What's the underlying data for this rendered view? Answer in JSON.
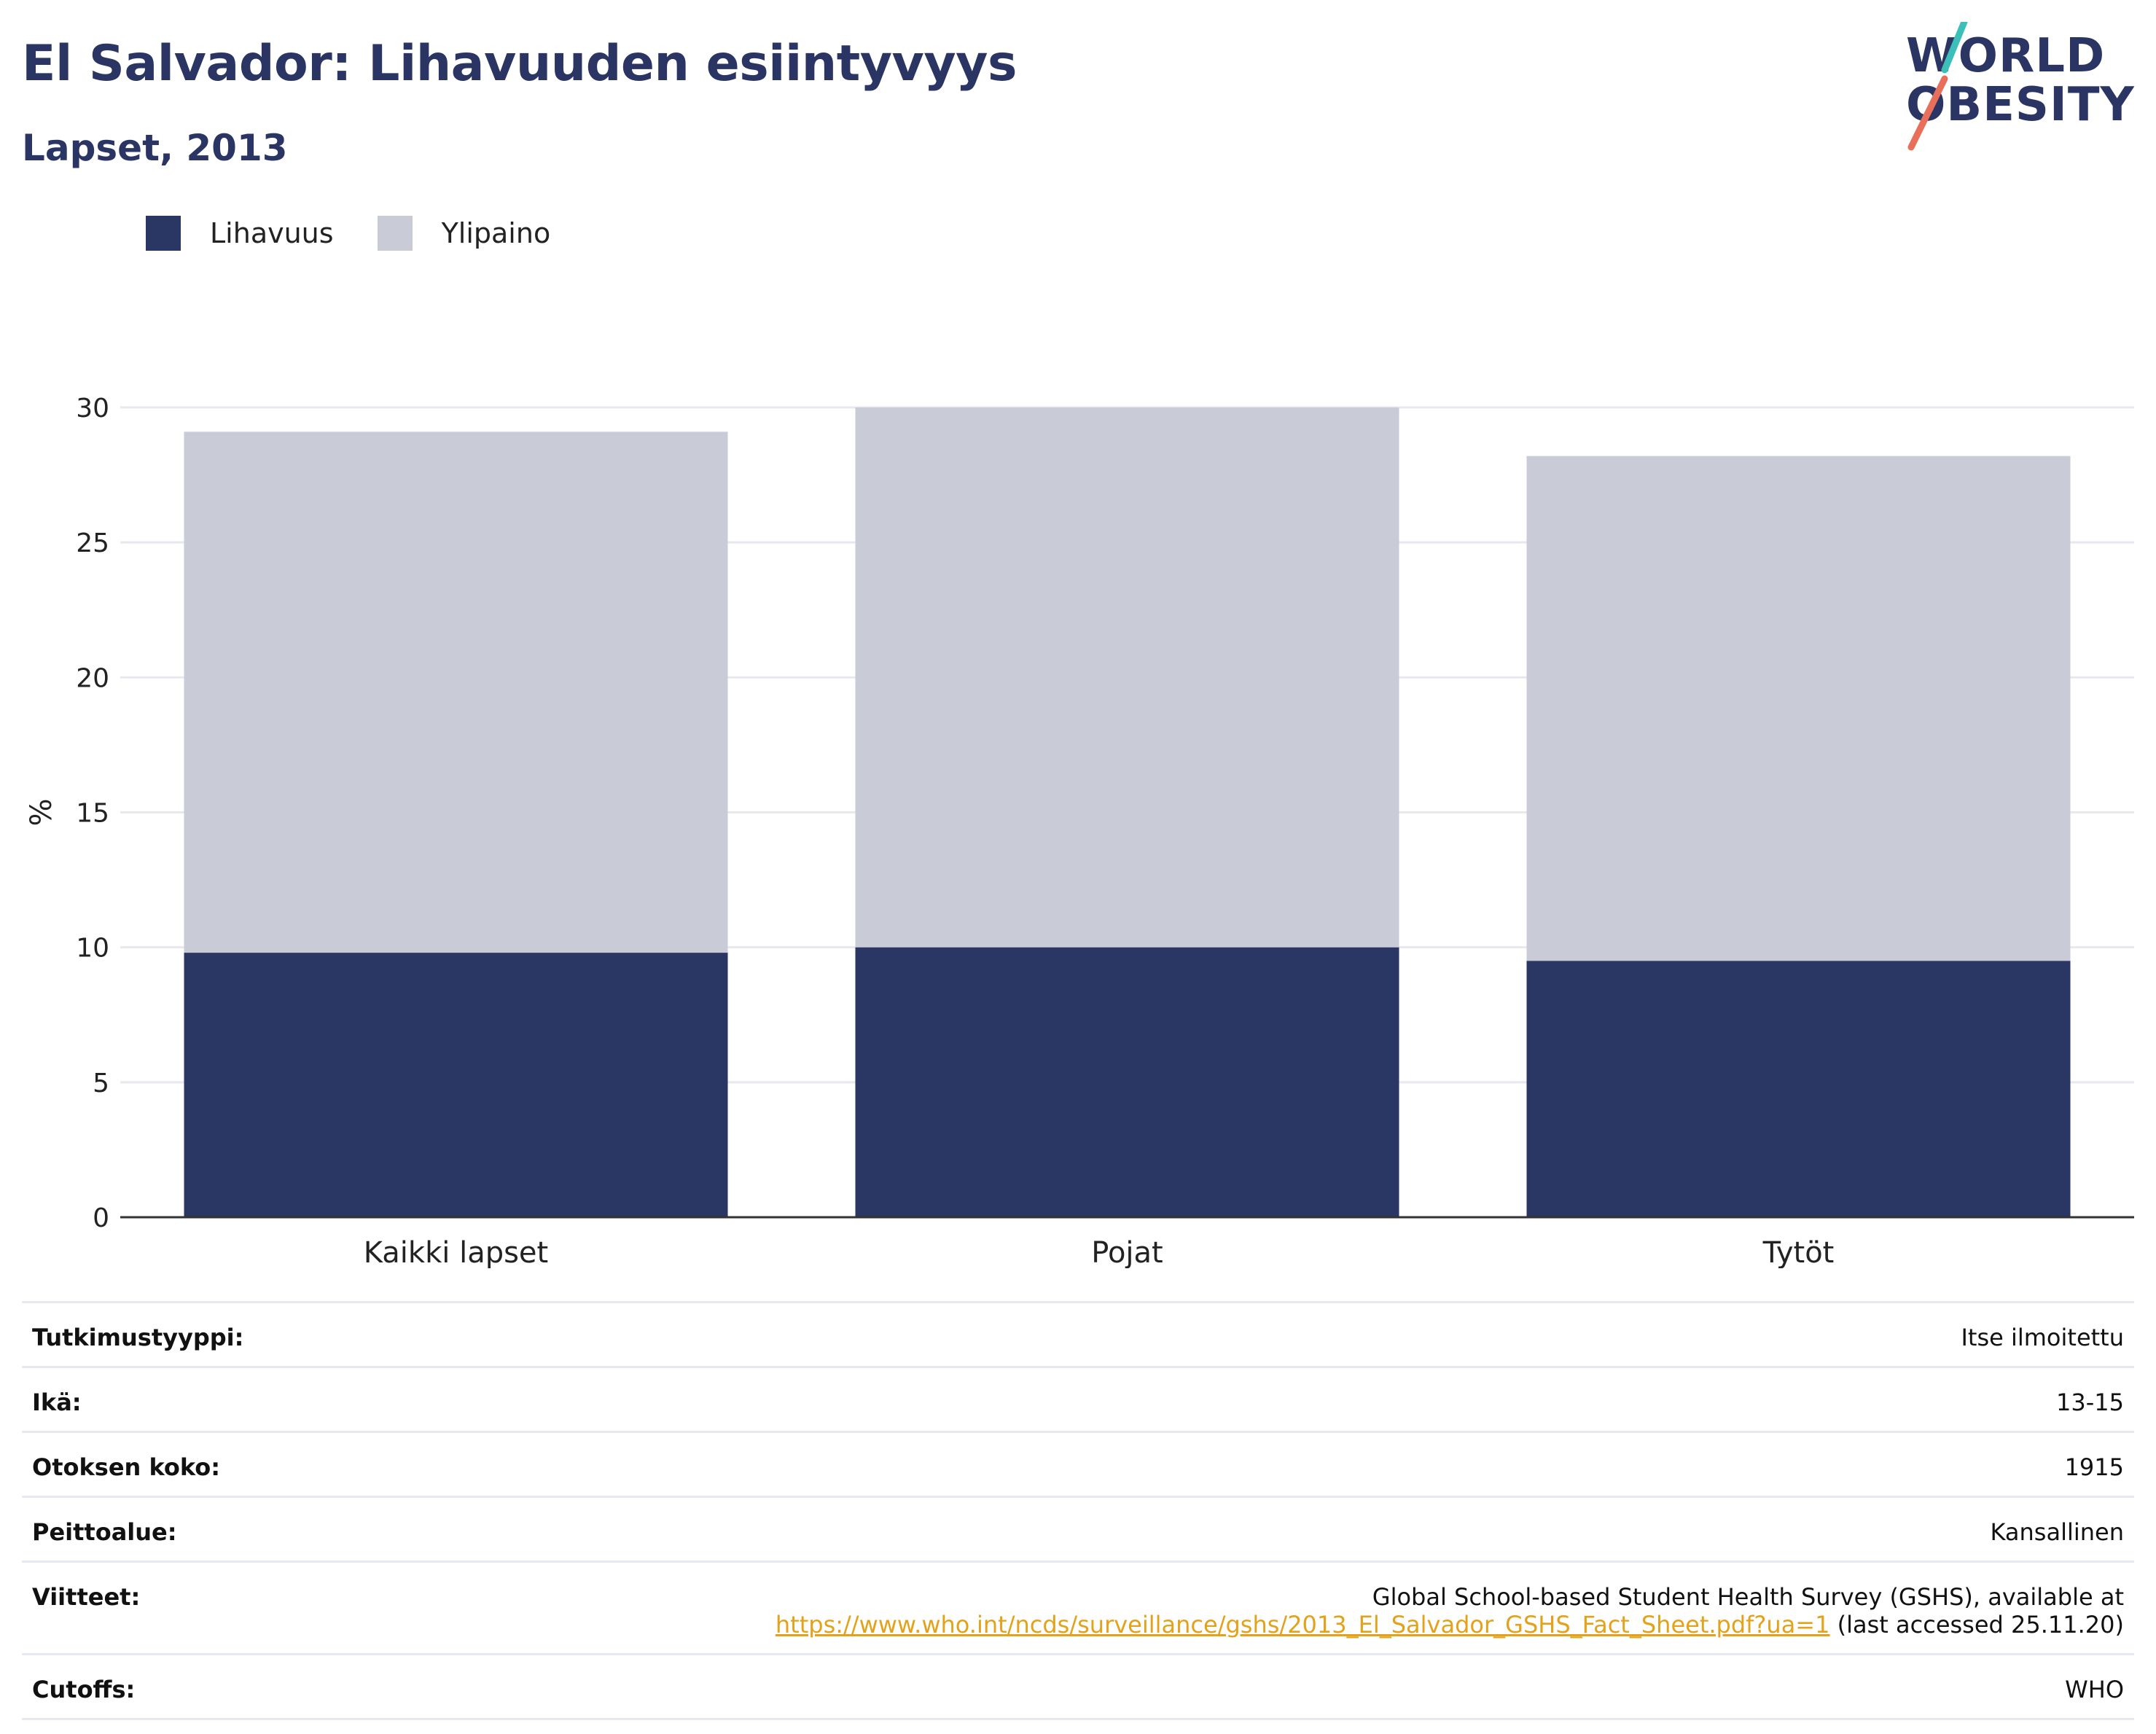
{
  "header": {
    "title": "El Salvador: Lihavuuden esiintyvyys",
    "subtitle": "Lapset, 2013"
  },
  "logo": {
    "line1": "WORLD",
    "line2": "OBESITY",
    "colors": {
      "text": "#2a3564",
      "slash_top": "#3bbfb8",
      "slash_bottom": "#e8705a"
    }
  },
  "colors": {
    "obesity": "#2a3664",
    "overweight": "#c9cbd7",
    "grid": "#e8e8ee",
    "axis": "#333333"
  },
  "legend": [
    {
      "label": "Lihavuus",
      "color": "#2a3664"
    },
    {
      "label": "Ylipaino",
      "color": "#c9cbd7"
    }
  ],
  "chart_data": {
    "type": "bar",
    "stacked": true,
    "categories": [
      "Kaikki lapset",
      "Pojat",
      "Tytöt"
    ],
    "series": [
      {
        "name": "Lihavuus",
        "values": [
          9.8,
          10.0,
          9.5
        ]
      },
      {
        "name": "Ylipaino",
        "values": [
          19.3,
          20.0,
          18.7
        ]
      }
    ],
    "ylabel": "%",
    "ylim": [
      0,
      30
    ],
    "yticks": [
      0,
      5,
      10,
      15,
      20,
      25,
      30
    ],
    "grid": true,
    "legend_position": "top-left"
  },
  "info": [
    {
      "key": "Tutkimustyyppi:",
      "value": "Itse ilmoitettu"
    },
    {
      "key": "Ikä:",
      "value": "13-15"
    },
    {
      "key": "Otoksen koko:",
      "value": "1915"
    },
    {
      "key": "Peittoalue:",
      "value": "Kansallinen"
    },
    {
      "key": "Viitteet:",
      "value": "Global School-based Student Health Survey (GSHS), available at",
      "link": "https://www.who.int/ncds/surveillance/gshs/2013_El_Salvador_GSHS_Fact_Sheet.pdf?ua=1",
      "suffix": " (last accessed 25.11.20)"
    },
    {
      "key": "Cutoffs:",
      "value": "WHO"
    }
  ]
}
